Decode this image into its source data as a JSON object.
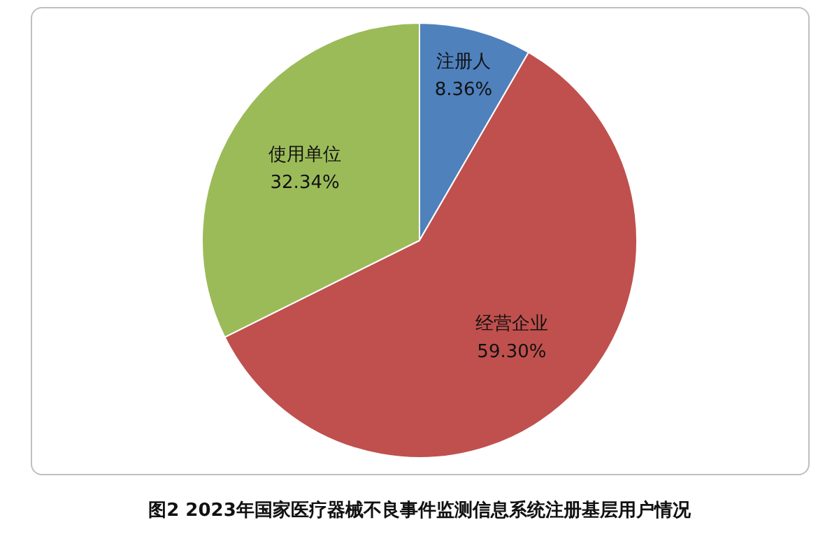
{
  "chart_data": {
    "type": "pie",
    "title": "图2 2023年国家医疗器械不良事件监测信息系统注册基层用户情况",
    "categories": [
      "注册人",
      "经营企业",
      "使用单位"
    ],
    "values": [
      8.36,
      59.3,
      32.34
    ],
    "value_labels": [
      "8.36%",
      "59.30%",
      "32.34%"
    ],
    "colors": [
      "#4f81bd",
      "#c0504d",
      "#9bbb59"
    ],
    "legend": false
  }
}
